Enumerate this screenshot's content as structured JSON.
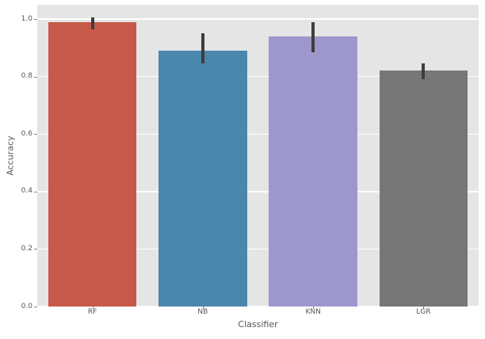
{
  "chart_data": {
    "type": "bar",
    "title": "",
    "xlabel": "Classifier",
    "ylabel": "Accuracy",
    "categories": [
      "RF",
      "NB",
      "KNN",
      "LGR"
    ],
    "values": [
      0.99,
      0.89,
      0.94,
      0.82
    ],
    "error_bars": [
      {
        "low": 0.965,
        "high": 1.005
      },
      {
        "low": 0.845,
        "high": 0.95
      },
      {
        "low": 0.885,
        "high": 0.99
      },
      {
        "low": 0.79,
        "high": 0.845
      }
    ],
    "bar_colors": [
      "#c7594a",
      "#4a87ac",
      "#9d97cc",
      "#777777"
    ],
    "ylim": [
      0,
      1.05
    ],
    "yticks": [
      0.0,
      0.2,
      0.4,
      0.6,
      0.8,
      1.0
    ],
    "ytick_labels": [
      "0.0",
      "0.2",
      "0.4",
      "0.6",
      "0.8",
      "1.0"
    ],
    "grid": true,
    "legend": false,
    "style": {
      "plot_background": "#e5e5e5",
      "figure_background": "#ffffff",
      "grid_color": "#ffffff",
      "errorbar_color": "#3d3d3d",
      "text_color": "#555555",
      "bar_width_fraction": 0.8
    }
  }
}
